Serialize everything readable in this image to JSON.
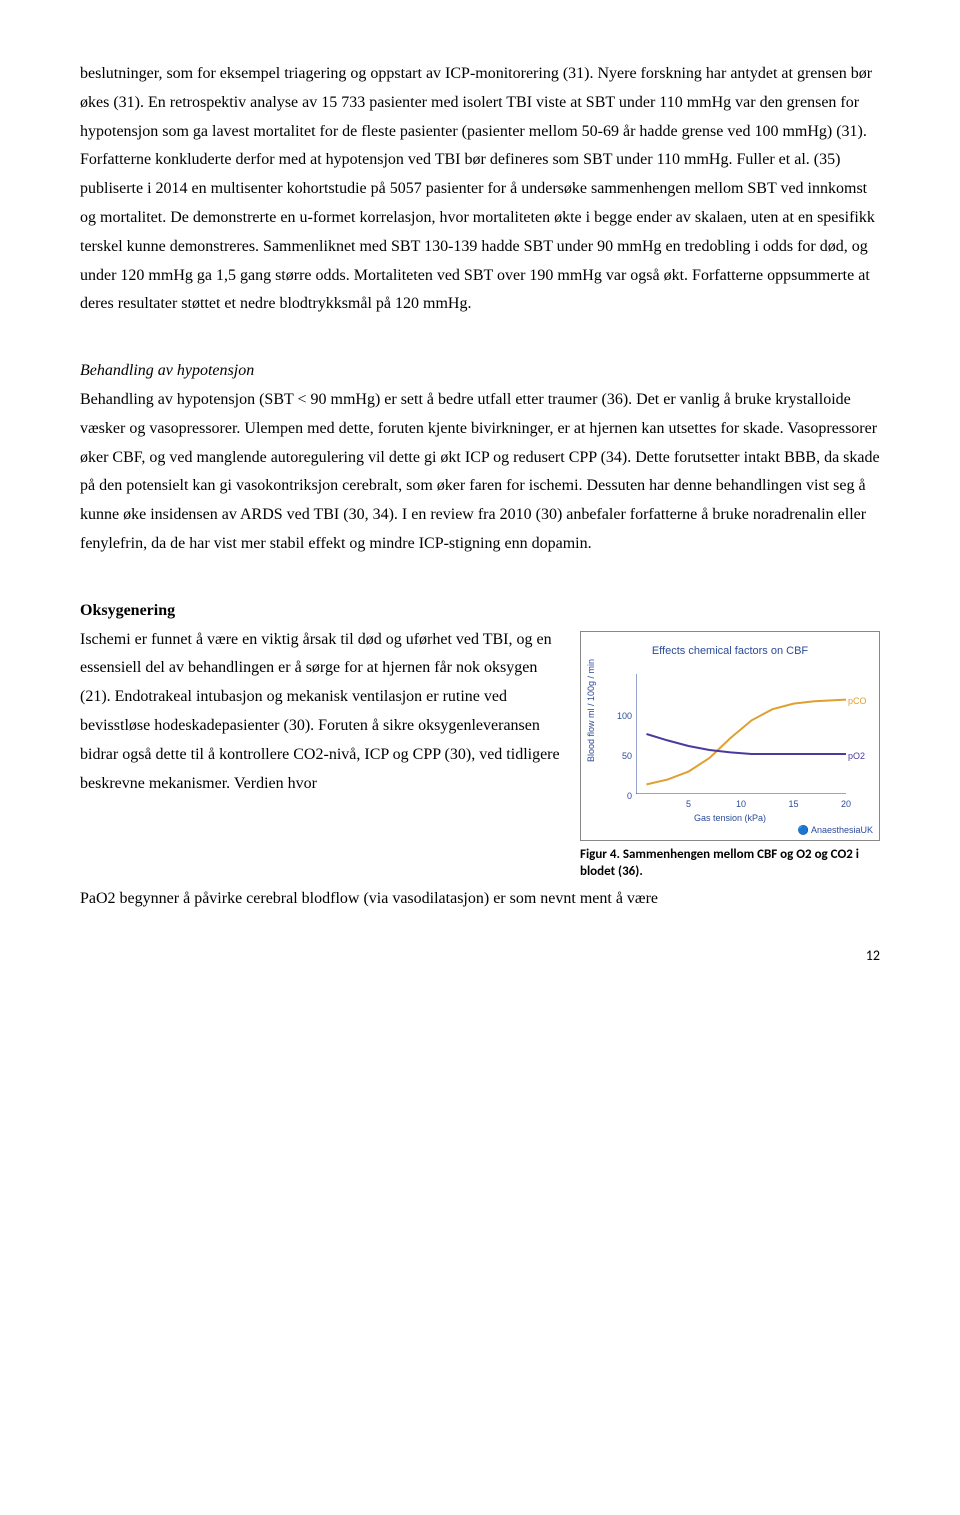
{
  "paragraphs": {
    "p1": "beslutninger, som for eksempel triagering og oppstart av ICP-monitorering (31). Nyere forskning har antydet at grensen bør økes (31). En retrospektiv analyse av 15 733 pasienter med isolert TBI viste at SBT under 110 mmHg var den grensen for hypotensjon som ga lavest mortalitet for de fleste pasienter (pasienter mellom 50-69 år hadde grense ved 100 mmHg) (31). Forfatterne konkluderte derfor med at hypotensjon ved TBI bør defineres som SBT under 110 mmHg. Fuller et al. (35) publiserte i 2014 en multisenter kohortstudie på 5057 pasienter for å undersøke sammenhengen mellom SBT ved innkomst og mortalitet. De demonstrerte en u-formet korrelasjon, hvor mortaliteten økte i begge ender av skalaen, uten at en spesifikk terskel kunne demonstreres. Sammenliknet med SBT 130-139 hadde SBT under 90 mmHg en tredobling i odds for død, og under 120 mmHg ga 1,5 gang større odds. Mortaliteten ved SBT over 190 mmHg var også økt. Forfatterne oppsummerte at deres resultater støttet et nedre blodtrykksmål på 120 mmHg.",
    "h2": "Behandling av hypotensjon",
    "p2": "Behandling av hypotensjon (SBT < 90 mmHg) er sett å bedre utfall etter traumer (36). Det er vanlig å bruke krystalloide væsker og vasopressorer. Ulempen med dette, foruten kjente bivirkninger, er at hjernen kan utsettes for skade. Vasopressorer øker CBF, og ved manglende autoregulering vil dette gi økt ICP og redusert CPP (34). Dette forutsetter intakt BBB, da skade på den potensielt kan gi vasokontriksjon cerebralt, som øker faren for ischemi. Dessuten har denne behandlingen vist seg å kunne øke insidensen av ARDS ved TBI (30, 34). I en review fra 2010 (30) anbefaler forfatterne å bruke noradrenalin eller fenylefrin, da de har vist mer stabil effekt og mindre ICP-stigning enn dopamin.",
    "h3": "Oksygenering",
    "p3_part1": "Ischemi er funnet å være en viktig årsak til død og uførhet ved TBI, og en essensiell del av behandlingen er å sørge for at hjernen får nok oksygen (21). Endotrakeal intubasjon og mekanisk ventilasjon er rutine ved bevisstløse hodeskadepasienter (30). Foruten å sikre oksygenleveransen bidrar også dette til å kontrollere CO2-nivå, ICP og CPP (30), ved tidligere beskrevne mekanismer. Verdien hvor",
    "p3_part2": "PaO2 begynner å påvirke cerebral blodflow (via vasodilatasjon) er som nevnt ment å være"
  },
  "figure": {
    "caption": "Figur 4. Sammenhengen mellom CBF og O2 og CO2 i blodet (36).",
    "chart": {
      "title": "Effects chemical factors on CBF",
      "ylabel": "Blood flow ml / 100g / min",
      "xlabel": "Gas tension (kPa)",
      "credit": "🔵 AnaesthesiaUK",
      "ylim": [
        0,
        150
      ],
      "yticks": [
        0,
        50,
        100
      ],
      "xlim": [
        0,
        20
      ],
      "xticks": [
        5,
        10,
        15,
        20
      ],
      "colors": {
        "axis": "#2a4b9b",
        "pco": "#e0a030",
        "po2": "#4a3a9e"
      },
      "series": {
        "pco": {
          "label": "pCO",
          "x": [
            1,
            3,
            5,
            7,
            9,
            11,
            13,
            15,
            17,
            20
          ],
          "y": [
            12,
            18,
            28,
            45,
            70,
            92,
            106,
            113,
            116,
            118
          ]
        },
        "po2": {
          "label": "pO2",
          "x": [
            1,
            3,
            5,
            7,
            9,
            11,
            13,
            15,
            17,
            20
          ],
          "y": [
            75,
            67,
            60,
            55,
            52,
            50,
            50,
            50,
            50,
            50
          ]
        }
      }
    }
  },
  "page_number": "12"
}
